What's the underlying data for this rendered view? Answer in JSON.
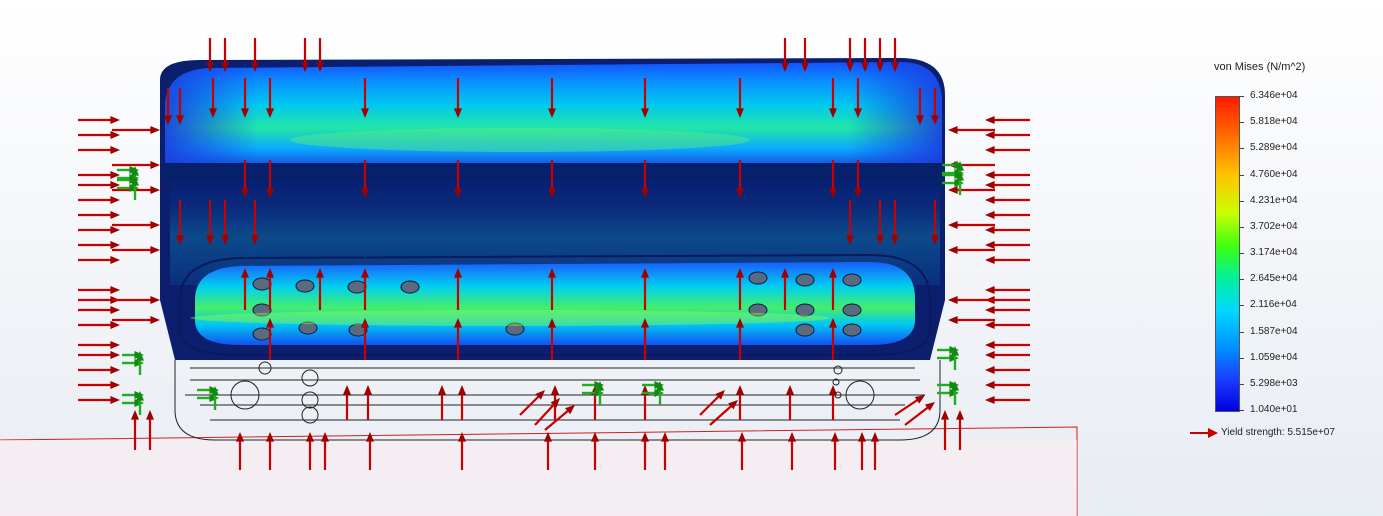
{
  "legend": {
    "title": "von Mises (N/m^2)",
    "ticks": [
      "6.346e+04",
      "5.818e+04",
      "5.289e+04",
      "4.760e+04",
      "4.231e+04",
      "3.702e+04",
      "3.174e+04",
      "2.645e+04",
      "2.116e+04",
      "1.587e+04",
      "1.059e+04",
      "5.298e+03",
      "1.040e+01"
    ],
    "yield_label": "Yield strength: 5.515e+07"
  },
  "colors": {
    "load_arrow": "#c80000",
    "fixture_arrow": "#1fae1f",
    "outline": "#222222",
    "ground_line": "#d02020"
  },
  "model": {
    "icon": "stress-plot-model",
    "load_icon": "force-arrow-icon",
    "fixture_icon": "fixture-arrow-icon"
  }
}
